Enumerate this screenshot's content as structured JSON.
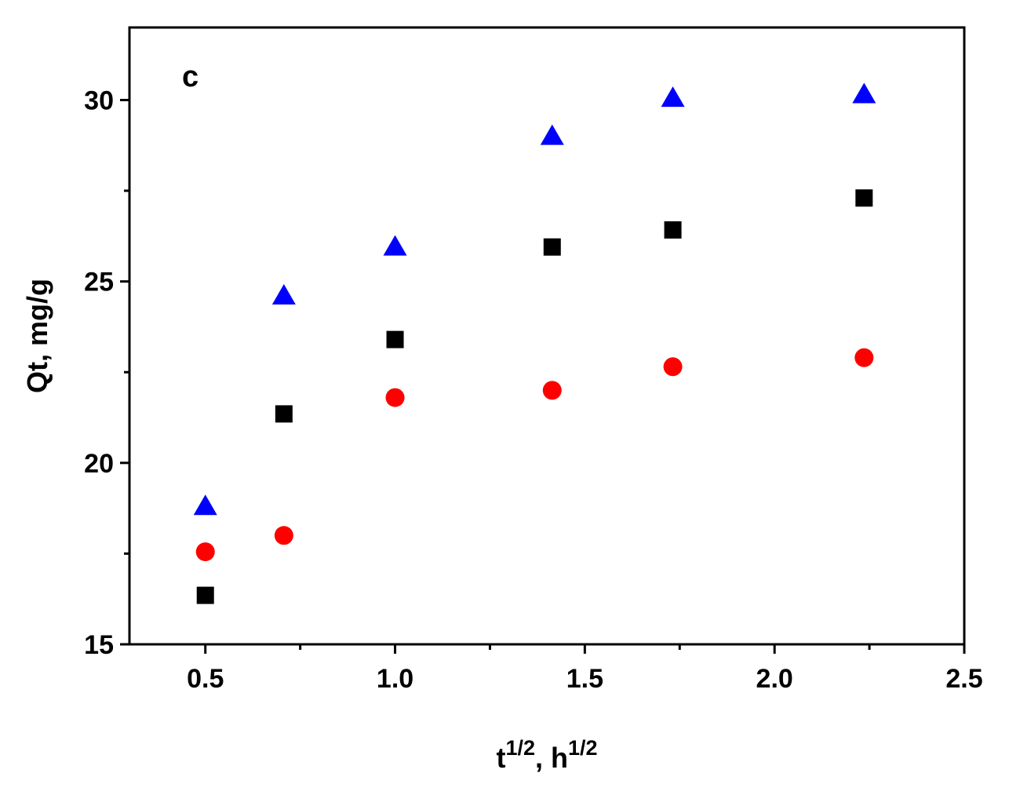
{
  "chart_data": {
    "type": "scatter",
    "panel_label": "c",
    "xlabel": {
      "base": "t",
      "sup1": "1/2",
      "mid": ", h",
      "sup2": "1/2"
    },
    "ylabel": "Qt, mg/g",
    "xlim": [
      0.3,
      2.5
    ],
    "ylim": [
      15,
      32
    ],
    "x_ticks": [
      0.5,
      1.0,
      1.5,
      2.0,
      2.5
    ],
    "x_tick_labels": [
      "0.5",
      "1.0",
      "1.5",
      "2.0",
      "2.5"
    ],
    "x_minor_ticks": [
      0.75,
      1.25,
      1.75,
      2.25
    ],
    "y_ticks": [
      15,
      20,
      25,
      30
    ],
    "y_tick_labels": [
      "15",
      "20",
      "25",
      "30"
    ],
    "y_minor_ticks": [
      17.5,
      22.5,
      27.5
    ],
    "grid": false,
    "series": [
      {
        "marker": "square",
        "color": "#000000",
        "x": [
          0.5,
          0.707,
          1.0,
          1.414,
          1.732,
          2.236
        ],
        "y": [
          16.35,
          21.35,
          23.4,
          25.95,
          26.42,
          27.3
        ]
      },
      {
        "marker": "circle",
        "color": "#ff0000",
        "x": [
          0.5,
          0.707,
          1.0,
          1.414,
          1.732,
          2.236
        ],
        "y": [
          17.55,
          18.0,
          21.8,
          22.0,
          22.65,
          22.9
        ]
      },
      {
        "marker": "triangle",
        "color": "#0000ff",
        "x": [
          0.5,
          0.707,
          1.0,
          1.414,
          1.732,
          2.236
        ],
        "y": [
          18.8,
          24.6,
          25.95,
          29.0,
          30.05,
          30.15
        ]
      }
    ]
  }
}
